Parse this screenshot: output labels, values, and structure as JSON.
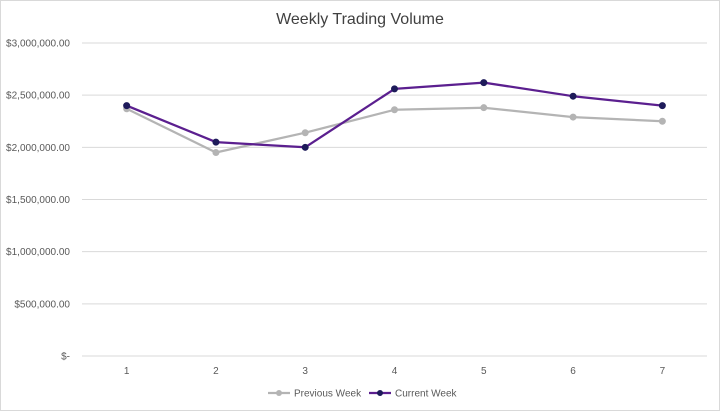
{
  "chart_data": {
    "type": "line",
    "title": "Weekly Trading Volume",
    "xlabel": "",
    "ylabel": "",
    "categories": [
      "1",
      "2",
      "3",
      "4",
      "5",
      "6",
      "7"
    ],
    "y_ticks": [
      0,
      500000,
      1000000,
      1500000,
      2000000,
      2500000,
      3000000
    ],
    "y_tick_labels": [
      "$-",
      "$500,000.00",
      "$1,000,000.00",
      "$1,500,000.00",
      "$2,000,000.00",
      "$2,500,000.00",
      "$3,000,000.00"
    ],
    "ylim": [
      0,
      3000000
    ],
    "grid": true,
    "legend_position": "bottom",
    "series": [
      {
        "name": "Previous Week",
        "color": "#b4b4b4",
        "values": [
          2370000,
          1950000,
          2140000,
          2360000,
          2380000,
          2290000,
          2250000
        ]
      },
      {
        "name": "Current Week",
        "color": "#5b1f8f",
        "marker_color": "#1e1b5a",
        "values": [
          2400000,
          2050000,
          2000000,
          2560000,
          2620000,
          2490000,
          2400000
        ]
      }
    ]
  }
}
